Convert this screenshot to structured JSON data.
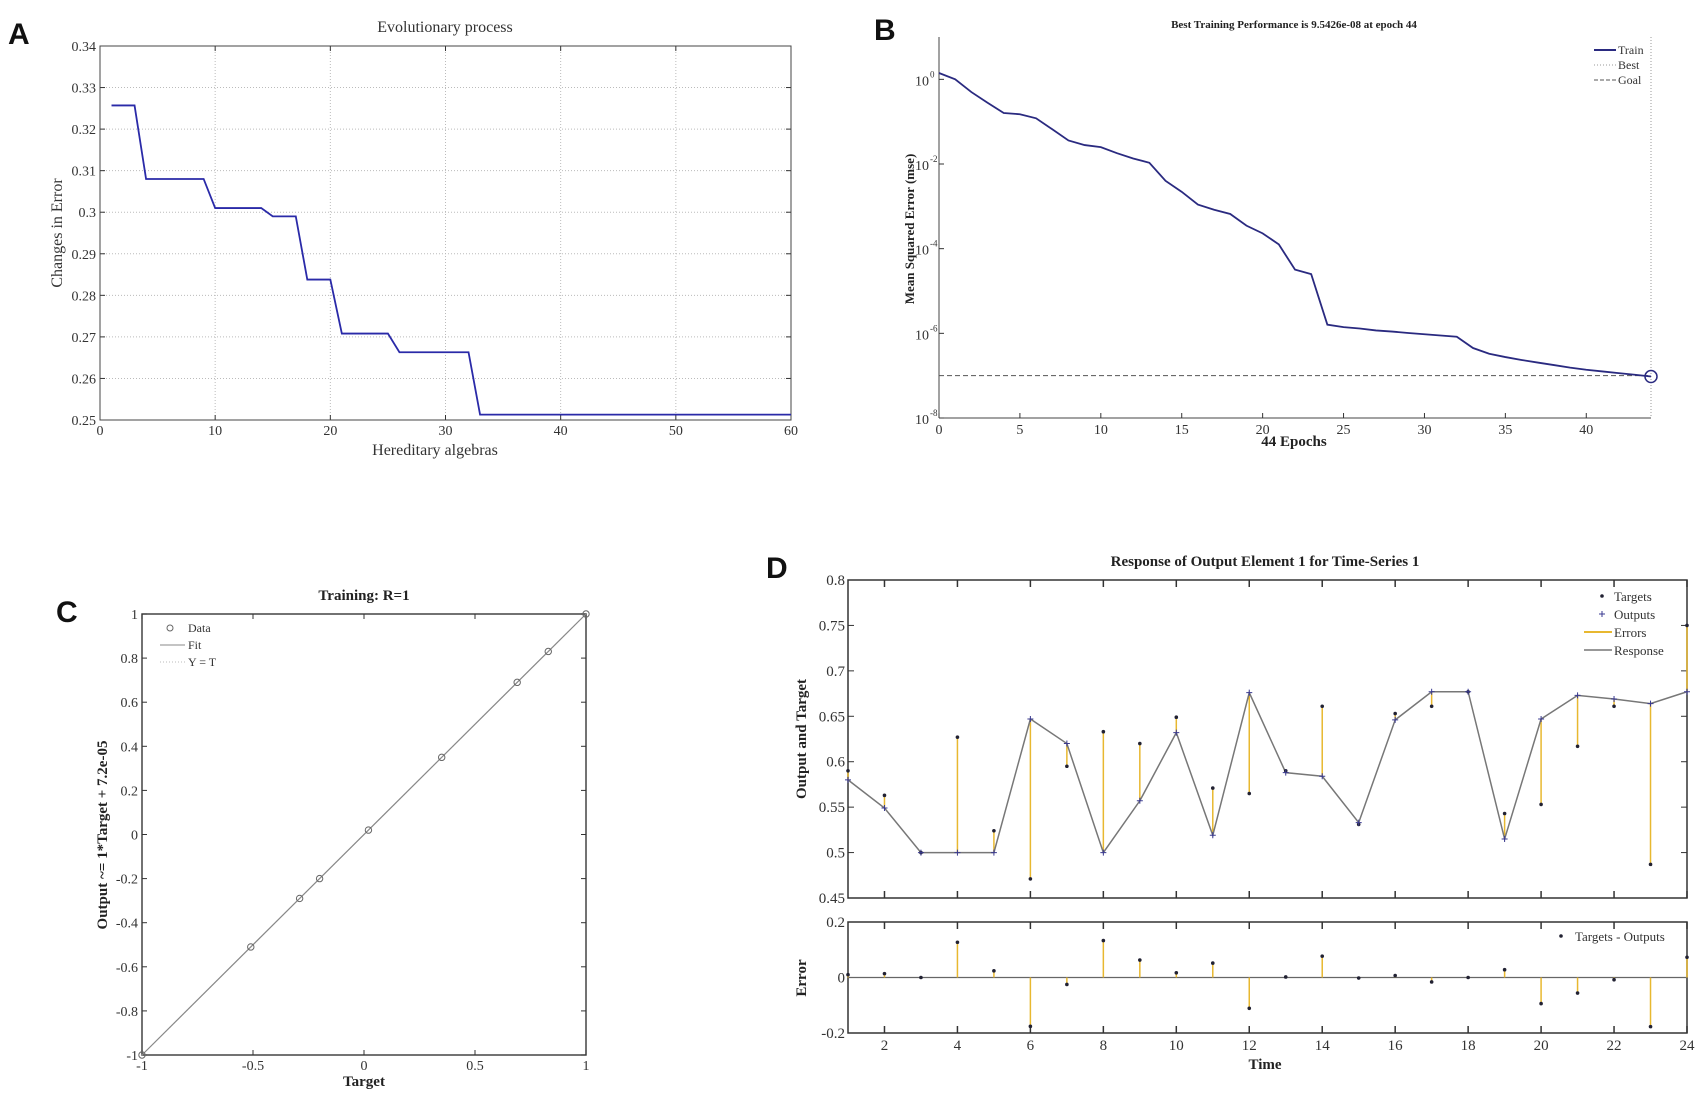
{
  "panel_letters": [
    "A",
    "B",
    "C",
    "D"
  ],
  "chart_data": [
    {
      "panel": "A",
      "type": "line",
      "title": "Evolutionary process",
      "xlabel": "Hereditary algebras",
      "ylabel": "Changes in Error",
      "xlim": [
        0,
        60
      ],
      "ylim": [
        0.25,
        0.34
      ],
      "xticks": [
        0,
        10,
        20,
        30,
        40,
        50,
        60
      ],
      "yticks": [
        "0.25",
        "0.26",
        "0.27",
        "0.28",
        "0.29",
        "0.3",
        "0.31",
        "0.32",
        "0.33",
        "0.34"
      ],
      "grid": true,
      "line_color": "#2a2aa8",
      "x": [
        1,
        3,
        4,
        9,
        10,
        14,
        15,
        17,
        18,
        20,
        21,
        25,
        26,
        32,
        33,
        60
      ],
      "y": [
        0.3257,
        0.3257,
        0.308,
        0.308,
        0.301,
        0.301,
        0.299,
        0.299,
        0.2838,
        0.2838,
        0.2708,
        0.2708,
        0.2663,
        0.2663,
        0.2513,
        0.2513
      ]
    },
    {
      "panel": "B",
      "type": "line",
      "title": "Best Training Performance is 9.5426e-08 at epoch 44",
      "xlabel": "44 Epochs",
      "ylabel": "Mean Squared Error  (mse)",
      "yscale": "log",
      "xlim": [
        0,
        44
      ],
      "ylim": [
        1e-08,
        10
      ],
      "xticks": [
        0,
        5,
        10,
        15,
        20,
        25,
        30,
        35,
        40
      ],
      "ytick_base": "10",
      "ytick_exponents": [
        "0",
        "-2",
        "-4",
        "-6",
        "-8"
      ],
      "legend": [
        "Train",
        "Best",
        "Goal"
      ],
      "legend_placement": "top-right",
      "line_color": "#2a2a80",
      "goal": 1e-07,
      "best_epoch": 44,
      "best_value": 9.5426e-08,
      "epochs": [
        0,
        1,
        2,
        3,
        4,
        5,
        6,
        7,
        8,
        9,
        10,
        11,
        12,
        13,
        14,
        15,
        16,
        17,
        18,
        19,
        20,
        21,
        22,
        23,
        24,
        25,
        26,
        27,
        28,
        29,
        30,
        31,
        32,
        33,
        34,
        35,
        36,
        37,
        38,
        39,
        40,
        41,
        42,
        43,
        44
      ],
      "mse": [
        1.41,
        1.0,
        0.5,
        0.28,
        0.16,
        0.15,
        0.12,
        0.066,
        0.036,
        0.028,
        0.025,
        0.018,
        0.0135,
        0.0107,
        0.004,
        0.0022,
        0.0011,
        0.00083,
        0.00066,
        0.00035,
        0.00023,
        0.000126,
        3.2e-05,
        2.5e-05,
        1.6e-06,
        1.4e-06,
        1.3e-06,
        1.17e-06,
        1.1e-06,
        1.02e-06,
        9.5e-07,
        8.9e-07,
        8.3e-07,
        4.5e-07,
        3.3e-07,
        2.75e-07,
        2.35e-07,
        2.04e-07,
        1.78e-07,
        1.55e-07,
        1.38e-07,
        1.26e-07,
        1.15e-07,
        1.05e-07,
        9.5426e-08
      ]
    },
    {
      "panel": "C",
      "type": "scatter",
      "title": "Training: R=1",
      "xlabel": "Target",
      "ylabel": "Output ~= 1*Target + 7.2e-05",
      "xlim": [
        -1,
        1
      ],
      "ylim": [
        -1,
        1
      ],
      "xticks": [
        "-1",
        "-0.5",
        "0",
        "0.5",
        "1"
      ],
      "yticks": [
        "-1",
        "-0.8",
        "-0.6",
        "-0.4",
        "-0.2",
        "0",
        "0.2",
        "0.4",
        "0.6",
        "0.8",
        "1"
      ],
      "legend": [
        "Data",
        "Fit",
        "Y = T"
      ],
      "legend_placement": "top-left",
      "target": [
        -1,
        -0.51,
        -0.29,
        -0.2,
        0.02,
        0.35,
        0.69,
        0.83,
        1
      ],
      "output": [
        -1,
        -0.51,
        -0.29,
        -0.2,
        0.02,
        0.35,
        0.69,
        0.83,
        1
      ]
    },
    {
      "panel": "D",
      "type": "line",
      "title": "Response of Output Element 1 for Time-Series 1",
      "xlabel": "Time",
      "xlim": [
        1,
        24
      ],
      "xticks": [
        2,
        4,
        6,
        8,
        10,
        12,
        14,
        16,
        18,
        20,
        22,
        24
      ],
      "error_color": "#e8b830",
      "time": [
        1,
        2,
        3,
        4,
        5,
        6,
        7,
        8,
        9,
        10,
        11,
        12,
        13,
        14,
        15,
        16,
        17,
        18,
        19,
        20,
        21,
        22,
        23,
        24
      ],
      "top": {
        "ylabel": "Output and Target",
        "ylim": [
          0.45,
          0.8
        ],
        "yticks": [
          "0.45",
          "0.5",
          "0.55",
          "0.6",
          "0.65",
          "0.7",
          "0.75",
          "0.8"
        ],
        "legend": [
          "Targets",
          "Outputs",
          "Errors",
          "Response"
        ],
        "legend_placement": "top-right",
        "outputs": [
          0.58,
          0.549,
          0.5,
          0.5,
          0.5,
          0.647,
          0.62,
          0.5,
          0.557,
          0.632,
          0.519,
          0.676,
          0.588,
          0.584,
          0.533,
          0.646,
          0.677,
          0.677,
          0.515,
          0.647,
          0.673,
          0.669,
          0.664,
          0.677
        ],
        "targets": [
          0.59,
          0.563,
          0.5,
          0.627,
          0.524,
          0.471,
          0.595,
          0.633,
          0.62,
          0.649,
          0.571,
          0.565,
          0.59,
          0.661,
          0.531,
          0.653,
          0.661,
          0.677,
          0.543,
          0.553,
          0.617,
          0.661,
          0.487,
          0.75
        ]
      },
      "bottom": {
        "ylabel": "Error",
        "ylim": [
          -0.2,
          0.2
        ],
        "yticks": [
          "-0.2",
          "0",
          "0.2"
        ],
        "legend": [
          "Targets - Outputs"
        ],
        "legend_placement": "top-right",
        "errors": [
          0.01,
          0.014,
          0,
          0.127,
          0.024,
          -0.176,
          -0.025,
          0.133,
          0.063,
          0.017,
          0.052,
          -0.111,
          0.002,
          0.077,
          -0.002,
          0.007,
          -0.016,
          0,
          0.028,
          -0.094,
          -0.056,
          -0.008,
          -0.177,
          0.073
        ]
      }
    }
  ]
}
